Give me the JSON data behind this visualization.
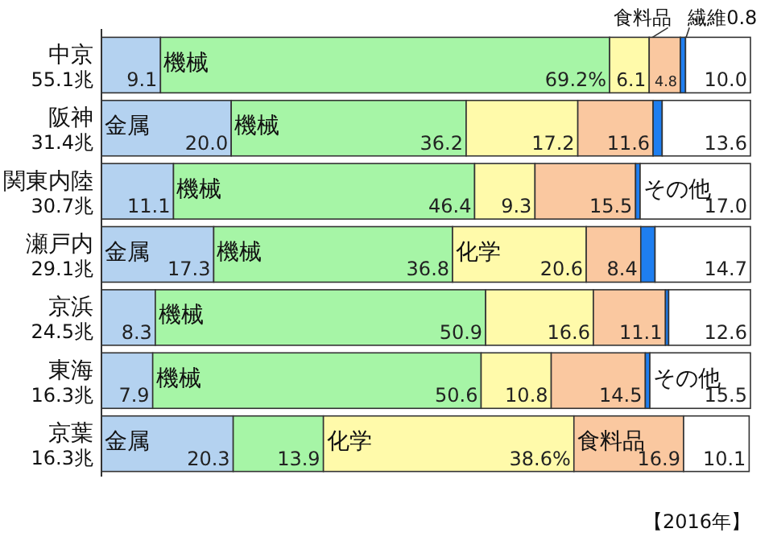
{
  "chart_data": {
    "type": "bar",
    "orientation": "horizontal",
    "stacked": true,
    "xlim": [
      0,
      100
    ],
    "categories": [
      "中京\n55.1兆",
      "阪神\n31.4兆",
      "関東内陸\n30.7兆",
      "瀬戸内\n29.1兆",
      "京浜\n24.5兆",
      "東海\n16.3兆",
      "京葉\n16.3兆"
    ],
    "series": [
      {
        "color": "#b4d2f0",
        "values": [
          9.1,
          20.0,
          11.1,
          17.3,
          8.3,
          7.9,
          20.3
        ],
        "value_labels": [
          "9.1",
          "20.0",
          "11.1",
          "17.3",
          "8.3",
          "7.9",
          "20.3"
        ]
      },
      {
        "color": "#a6f5a6",
        "values": [
          69.2,
          36.2,
          46.4,
          36.8,
          50.9,
          50.6,
          13.9
        ],
        "value_labels": [
          "69.2%",
          "36.2",
          "46.4",
          "36.8",
          "50.9",
          "50.6",
          "13.9"
        ]
      },
      {
        "color": "#fffaaa",
        "values": [
          6.1,
          17.2,
          9.3,
          20.6,
          16.6,
          10.8,
          38.6
        ],
        "value_labels": [
          "6.1",
          "17.2",
          "9.3",
          "20.6",
          "16.6",
          "10.8",
          "38.6%"
        ]
      },
      {
        "color": "#fac8a0",
        "values": [
          4.8,
          11.6,
          15.5,
          8.4,
          11.1,
          14.5,
          16.9
        ],
        "value_labels": [
          "4.8",
          "11.6",
          "15.5",
          "8.4",
          "11.1",
          "14.5",
          "16.9"
        ]
      },
      {
        "color": "#1e7ef0",
        "values": [
          0.8,
          1.4,
          0.7,
          2.2,
          0.5,
          0.7,
          null
        ],
        "value_labels": [
          null,
          null,
          null,
          null,
          null,
          null,
          null
        ]
      },
      {
        "color": "#ffffff",
        "values": [
          10.0,
          13.6,
          17.0,
          14.7,
          12.6,
          15.5,
          10.1
        ],
        "value_labels": [
          "10.0",
          "13.6",
          "17.0",
          "14.7",
          "12.6",
          "15.5",
          "10.1"
        ]
      }
    ],
    "annotations": [
      {
        "text": "機械",
        "x": 9.1,
        "y": "中京\n55.1兆"
      },
      {
        "text": "食料品",
        "x": 84.4,
        "y": "中京\n55.1兆"
      },
      {
        "text": "繊維0.8",
        "x": 89.6,
        "y": "中京\n55.1兆"
      },
      {
        "text": "金属",
        "x": 0,
        "y": "阪神\n31.4兆"
      },
      {
        "text": "機械",
        "x": 20.0,
        "y": "阪神\n31.4兆"
      },
      {
        "text": "機械",
        "x": 11.1,
        "y": "関東内陸\n30.7兆"
      },
      {
        "text": "その他",
        "x": 83.0,
        "y": "関東内陸\n30.7兆"
      },
      {
        "text": "金属",
        "x": 0,
        "y": "瀬戸内\n29.1兆"
      },
      {
        "text": "機械",
        "x": 17.3,
        "y": "瀬戸内\n29.1兆"
      },
      {
        "text": "化学",
        "x": 54.1,
        "y": "瀬戸内\n29.1兆"
      },
      {
        "text": "機械",
        "x": 8.3,
        "y": "京浜\n24.5兆"
      },
      {
        "text": "機械",
        "x": 7.9,
        "y": "東海\n16.3兆"
      },
      {
        "text": "その他",
        "x": 84.5,
        "y": "東海\n16.3兆"
      },
      {
        "text": "金属",
        "x": 0,
        "y": "京葉\n16.3兆"
      },
      {
        "text": "化学",
        "x": 34.2,
        "y": "京葉\n16.3兆"
      },
      {
        "text": "食料品",
        "x": 72.8,
        "y": "京葉\n16.3兆"
      },
      "【2016年】"
    ]
  }
}
